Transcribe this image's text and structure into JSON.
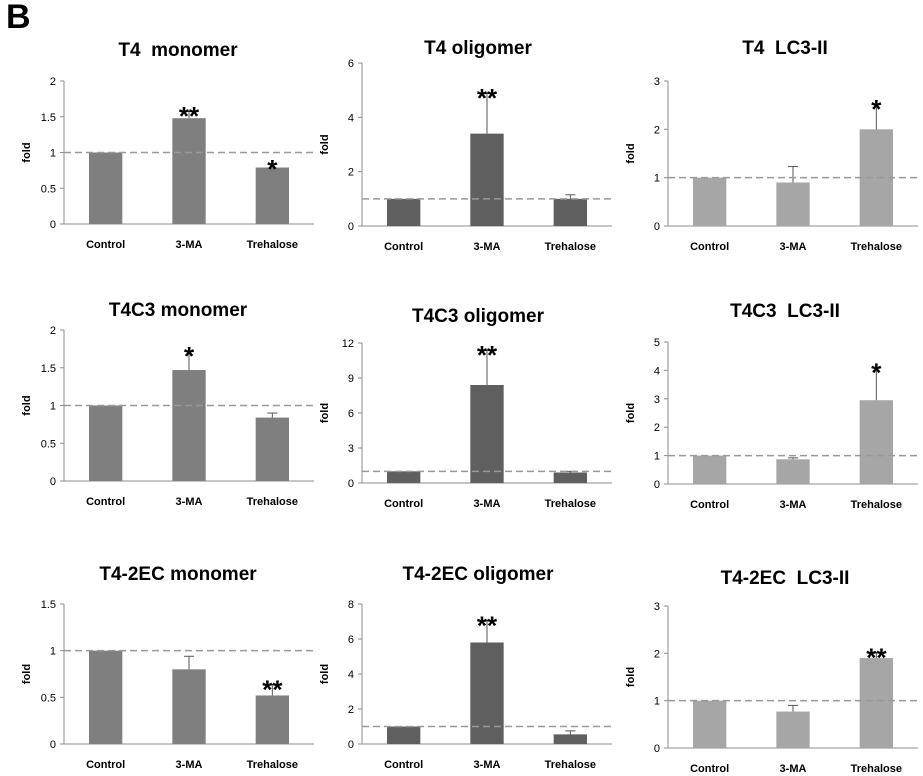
{
  "panel_label": "B",
  "colors": {
    "monomer": "#7f7f7f",
    "oligomer": "#5f5f5f",
    "lc3": "#a6a6a6",
    "reference_line": "#999999"
  },
  "chart_data": [
    {
      "type": "bar",
      "title": "T4  monomer",
      "ylabel": "fold",
      "ylim": [
        0,
        2
      ],
      "yticks": [
        "0",
        "0.5",
        "1",
        "1.5",
        "2"
      ],
      "categories": [
        "Control",
        "3-MA",
        "Trehalose"
      ],
      "values": [
        1.0,
        1.48,
        0.79
      ],
      "errors": [
        0,
        0.1,
        0.05
      ],
      "significance": [
        "",
        "**",
        "*"
      ],
      "reference_line": 1,
      "color_key": "monomer"
    },
    {
      "type": "bar",
      "title": "T4 oligomer",
      "ylabel": "fold",
      "ylim": [
        0,
        6
      ],
      "yticks": [
        "0",
        "2",
        "4",
        "6"
      ],
      "categories": [
        "Control",
        "3-MA",
        "Trehalose"
      ],
      "values": [
        1.0,
        3.4,
        1.0
      ],
      "errors": [
        0,
        1.5,
        0.15
      ],
      "significance": [
        "",
        "**",
        ""
      ],
      "reference_line": 1,
      "color_key": "oligomer"
    },
    {
      "type": "bar",
      "title": "T4  LC3-II",
      "ylabel": "fold",
      "ylim": [
        0,
        3
      ],
      "yticks": [
        "0",
        "1",
        "2",
        "3"
      ],
      "categories": [
        "Control",
        "3-MA",
        "Trehalose"
      ],
      "values": [
        1.0,
        0.9,
        2.0
      ],
      "errors": [
        0,
        0.33,
        0.52
      ],
      "significance": [
        "",
        "",
        "*"
      ],
      "reference_line": 1,
      "color_key": "lc3"
    },
    {
      "type": "bar",
      "title": "T4C3 monomer",
      "ylabel": "fold",
      "ylim": [
        0,
        2
      ],
      "yticks": [
        "0",
        "0.5",
        "1",
        "1.5",
        "2"
      ],
      "categories": [
        "Control",
        "3-MA",
        "Trehalose"
      ],
      "values": [
        1.0,
        1.47,
        0.84
      ],
      "errors": [
        0,
        0.25,
        0.06
      ],
      "significance": [
        "",
        "*",
        ""
      ],
      "reference_line": 1,
      "color_key": "monomer"
    },
    {
      "type": "bar",
      "title": "T4C3 oligomer",
      "ylabel": "fold",
      "ylim": [
        0,
        12
      ],
      "yticks": [
        "0",
        "3",
        "6",
        "9",
        "12"
      ],
      "categories": [
        "Control",
        "3-MA",
        "Trehalose"
      ],
      "values": [
        1.0,
        8.4,
        0.9
      ],
      "errors": [
        0,
        3.0,
        0.1
      ],
      "significance": [
        "",
        "**",
        ""
      ],
      "reference_line": 1,
      "color_key": "oligomer"
    },
    {
      "type": "bar",
      "title": "T4C3  LC3-II",
      "ylabel": "fold",
      "ylim": [
        0,
        5
      ],
      "yticks": [
        "0",
        "1",
        "2",
        "3",
        "4",
        "5"
      ],
      "categories": [
        "Control",
        "3-MA",
        "Trehalose"
      ],
      "values": [
        1.0,
        0.87,
        2.95
      ],
      "errors": [
        0,
        0.05,
        1.15
      ],
      "significance": [
        "",
        "",
        "*"
      ],
      "reference_line": 1,
      "color_key": "lc3"
    },
    {
      "type": "bar",
      "title": "T4-2EC monomer",
      "ylabel": "fold",
      "ylim": [
        0,
        1.5
      ],
      "yticks": [
        "0",
        "0.5",
        "1",
        "1.5"
      ],
      "categories": [
        "Control",
        "3-MA",
        "Trehalose"
      ],
      "values": [
        1.0,
        0.8,
        0.52
      ],
      "errors": [
        0,
        0.14,
        0.12
      ],
      "significance": [
        "",
        "",
        "**"
      ],
      "reference_line": 1,
      "color_key": "monomer"
    },
    {
      "type": "bar",
      "title": "T4-2EC oligomer",
      "ylabel": "fold",
      "ylim": [
        0,
        8
      ],
      "yticks": [
        "0",
        "2",
        "4",
        "6",
        "8"
      ],
      "categories": [
        "Control",
        "3-MA",
        "Trehalose"
      ],
      "values": [
        1.0,
        5.8,
        0.55
      ],
      "errors": [
        0,
        1.25,
        0.2
      ],
      "significance": [
        "",
        "**",
        ""
      ],
      "reference_line": 1,
      "color_key": "oligomer"
    },
    {
      "type": "bar",
      "title": "T4-2EC  LC3-II",
      "ylabel": "fold",
      "ylim": [
        0,
        3
      ],
      "yticks": [
        "0",
        "1",
        "2",
        "3"
      ],
      "categories": [
        "Control",
        "3-MA",
        "Trehalose"
      ],
      "values": [
        1.0,
        0.77,
        1.9
      ],
      "errors": [
        0,
        0.13,
        0.12
      ],
      "significance": [
        "",
        "",
        "**"
      ],
      "reference_line": 1,
      "color_key": "lc3"
    }
  ]
}
